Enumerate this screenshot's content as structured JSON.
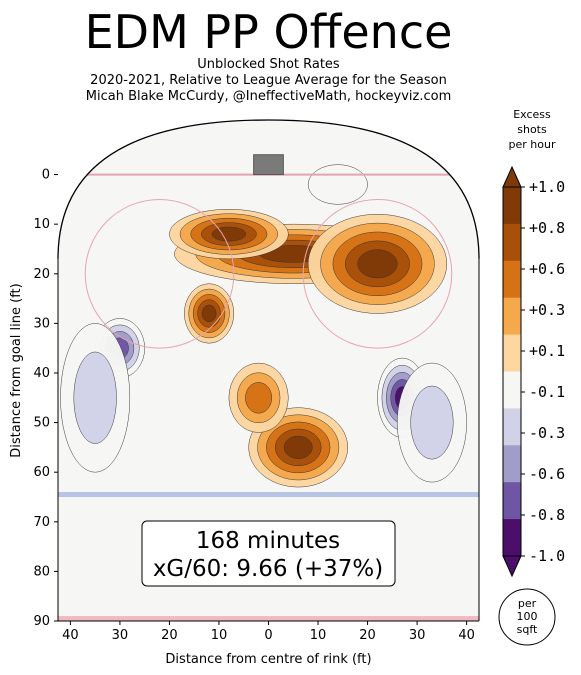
{
  "title": "EDM PP Offence",
  "subtitle_lines": [
    "Unblocked Shot Rates",
    "2020-2021, Relative to League Average for the Season",
    "Micah Blake McCurdy, @IneffectiveMath, hockeyviz.com"
  ],
  "annotation": {
    "minutes": "168 minutes",
    "xg": "xG/60: 9.66 (+37%)"
  },
  "colorbar": {
    "title_lines": [
      "Excess",
      "shots",
      "per hour"
    ],
    "tick_labels": [
      "+1.0",
      "+0.8",
      "+0.6",
      "+0.3",
      "+0.1",
      "-0.1",
      "-0.3",
      "-0.6",
      "-0.8",
      "-1.0"
    ],
    "colors": [
      "#4b0f6b",
      "#6f56a4",
      "#a29cc9",
      "#d1d1e8",
      "#f6f6f4",
      "#fdd6a1",
      "#f5a84c",
      "#d47215",
      "#a84f0a",
      "#7f3a08"
    ],
    "unit_lines": [
      "per",
      "100",
      "sqft"
    ]
  },
  "chart_data": {
    "type": "heatmap",
    "title": "EDM PP Offence",
    "xlabel": "Distance from centre of rink (ft)",
    "ylabel": "Distance from goal line (ft)",
    "xlim": [
      -42.5,
      42.5
    ],
    "ylim": [
      90,
      -11
    ],
    "x_ticks": [
      -40,
      -30,
      -20,
      -10,
      0,
      10,
      20,
      30,
      40
    ],
    "x_tick_labels": [
      "40",
      "30",
      "20",
      "10",
      "0",
      "10",
      "20",
      "30",
      "40"
    ],
    "y_ticks": [
      0,
      10,
      20,
      30,
      40,
      50,
      60,
      70,
      80,
      90
    ],
    "y_tick_labels": [
      "0",
      "10",
      "20",
      "30",
      "40",
      "50",
      "60",
      "70",
      "80",
      "90"
    ],
    "value_range": [
      -1.0,
      1.0
    ],
    "regions": [
      {
        "name": "high-slot-band",
        "x": 5,
        "y": 16,
        "level": 1.0,
        "rx": 24,
        "ry": 6
      },
      {
        "name": "left-circle-top",
        "x": -8,
        "y": 12,
        "level": 0.9,
        "rx": 12,
        "ry": 5
      },
      {
        "name": "right-circle-top",
        "x": 22,
        "y": 18,
        "level": 1.0,
        "rx": 14,
        "ry": 10
      },
      {
        "name": "left-faceoff",
        "x": -12,
        "y": 28,
        "level": 0.9,
        "rx": 5,
        "ry": 6
      },
      {
        "name": "point-center",
        "x": 6,
        "y": 55,
        "level": 1.0,
        "rx": 10,
        "ry": 8
      },
      {
        "name": "point-bridge",
        "x": -2,
        "y": 45,
        "level": 0.6,
        "rx": 6,
        "ry": 7
      },
      {
        "name": "left-wall",
        "x": -30,
        "y": 35,
        "level": -0.8,
        "rx": 5,
        "ry": 6
      },
      {
        "name": "right-wall",
        "x": 27,
        "y": 45,
        "level": -0.9,
        "rx": 5,
        "ry": 8
      },
      {
        "name": "left-low",
        "x": -35,
        "y": 45,
        "level": -0.3,
        "rx": 7,
        "ry": 15
      },
      {
        "name": "right-low",
        "x": 33,
        "y": 50,
        "level": -0.3,
        "rx": 7,
        "ry": 12
      },
      {
        "name": "goal-right-cold",
        "x": 14,
        "y": 2,
        "level": -0.2,
        "rx": 6,
        "ry": 4
      }
    ]
  }
}
